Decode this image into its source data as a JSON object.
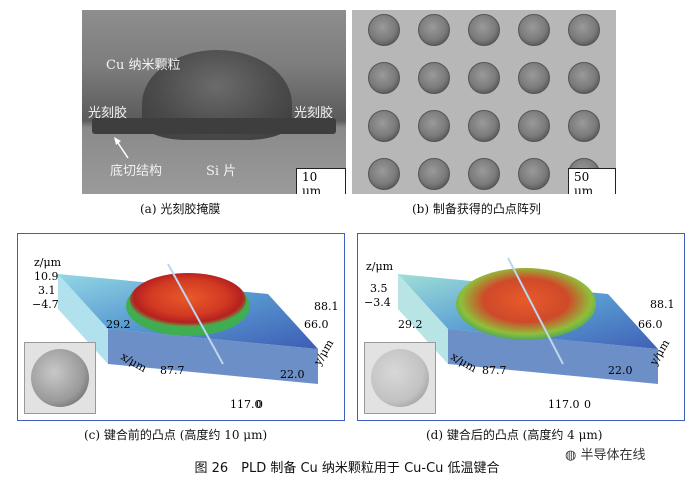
{
  "panel_a": {
    "label_cu": "Cu 纳米颗粒",
    "label_resist_left": "光刻胶",
    "label_resist_right": "光刻胶",
    "label_undercut": "底切结构",
    "label_si": "Si 片",
    "scale": "10 μm",
    "caption": "(a) 光刻胶掩膜"
  },
  "panel_b": {
    "scale": "50 μm",
    "caption": "(b) 制备获得的凸点阵列"
  },
  "panel_c": {
    "z_title": "z/μm",
    "z_ticks": [
      "10.9",
      "3.1",
      "−4.7"
    ],
    "x_title": "x/μm",
    "x_ticks": [
      "29.2",
      "87.7",
      "117.0"
    ],
    "y_title": "y/μm",
    "y_ticks": [
      "88.1",
      "66.0",
      "22.0",
      "0"
    ],
    "caption": "(c) 键合前的凸点 (高度约 10 μm)"
  },
  "panel_d": {
    "z_title": "z/μm",
    "z_ticks": [
      "3.5",
      "−3.4"
    ],
    "x_title": "x/μm",
    "x_ticks": [
      "29.2",
      "87.7",
      "117.0"
    ],
    "y_title": "y/μm",
    "y_ticks": [
      "88.1",
      "66.0",
      "22.0",
      "0"
    ],
    "caption": "(d) 键合后的凸点 (高度约 4 μm)"
  },
  "figure_title": "图 26　PLD 制备 Cu 纳米颗粒用于 Cu-Cu 低温键合",
  "watermark": "半导体在线",
  "colors": {
    "frame": "#3f5fbf"
  }
}
